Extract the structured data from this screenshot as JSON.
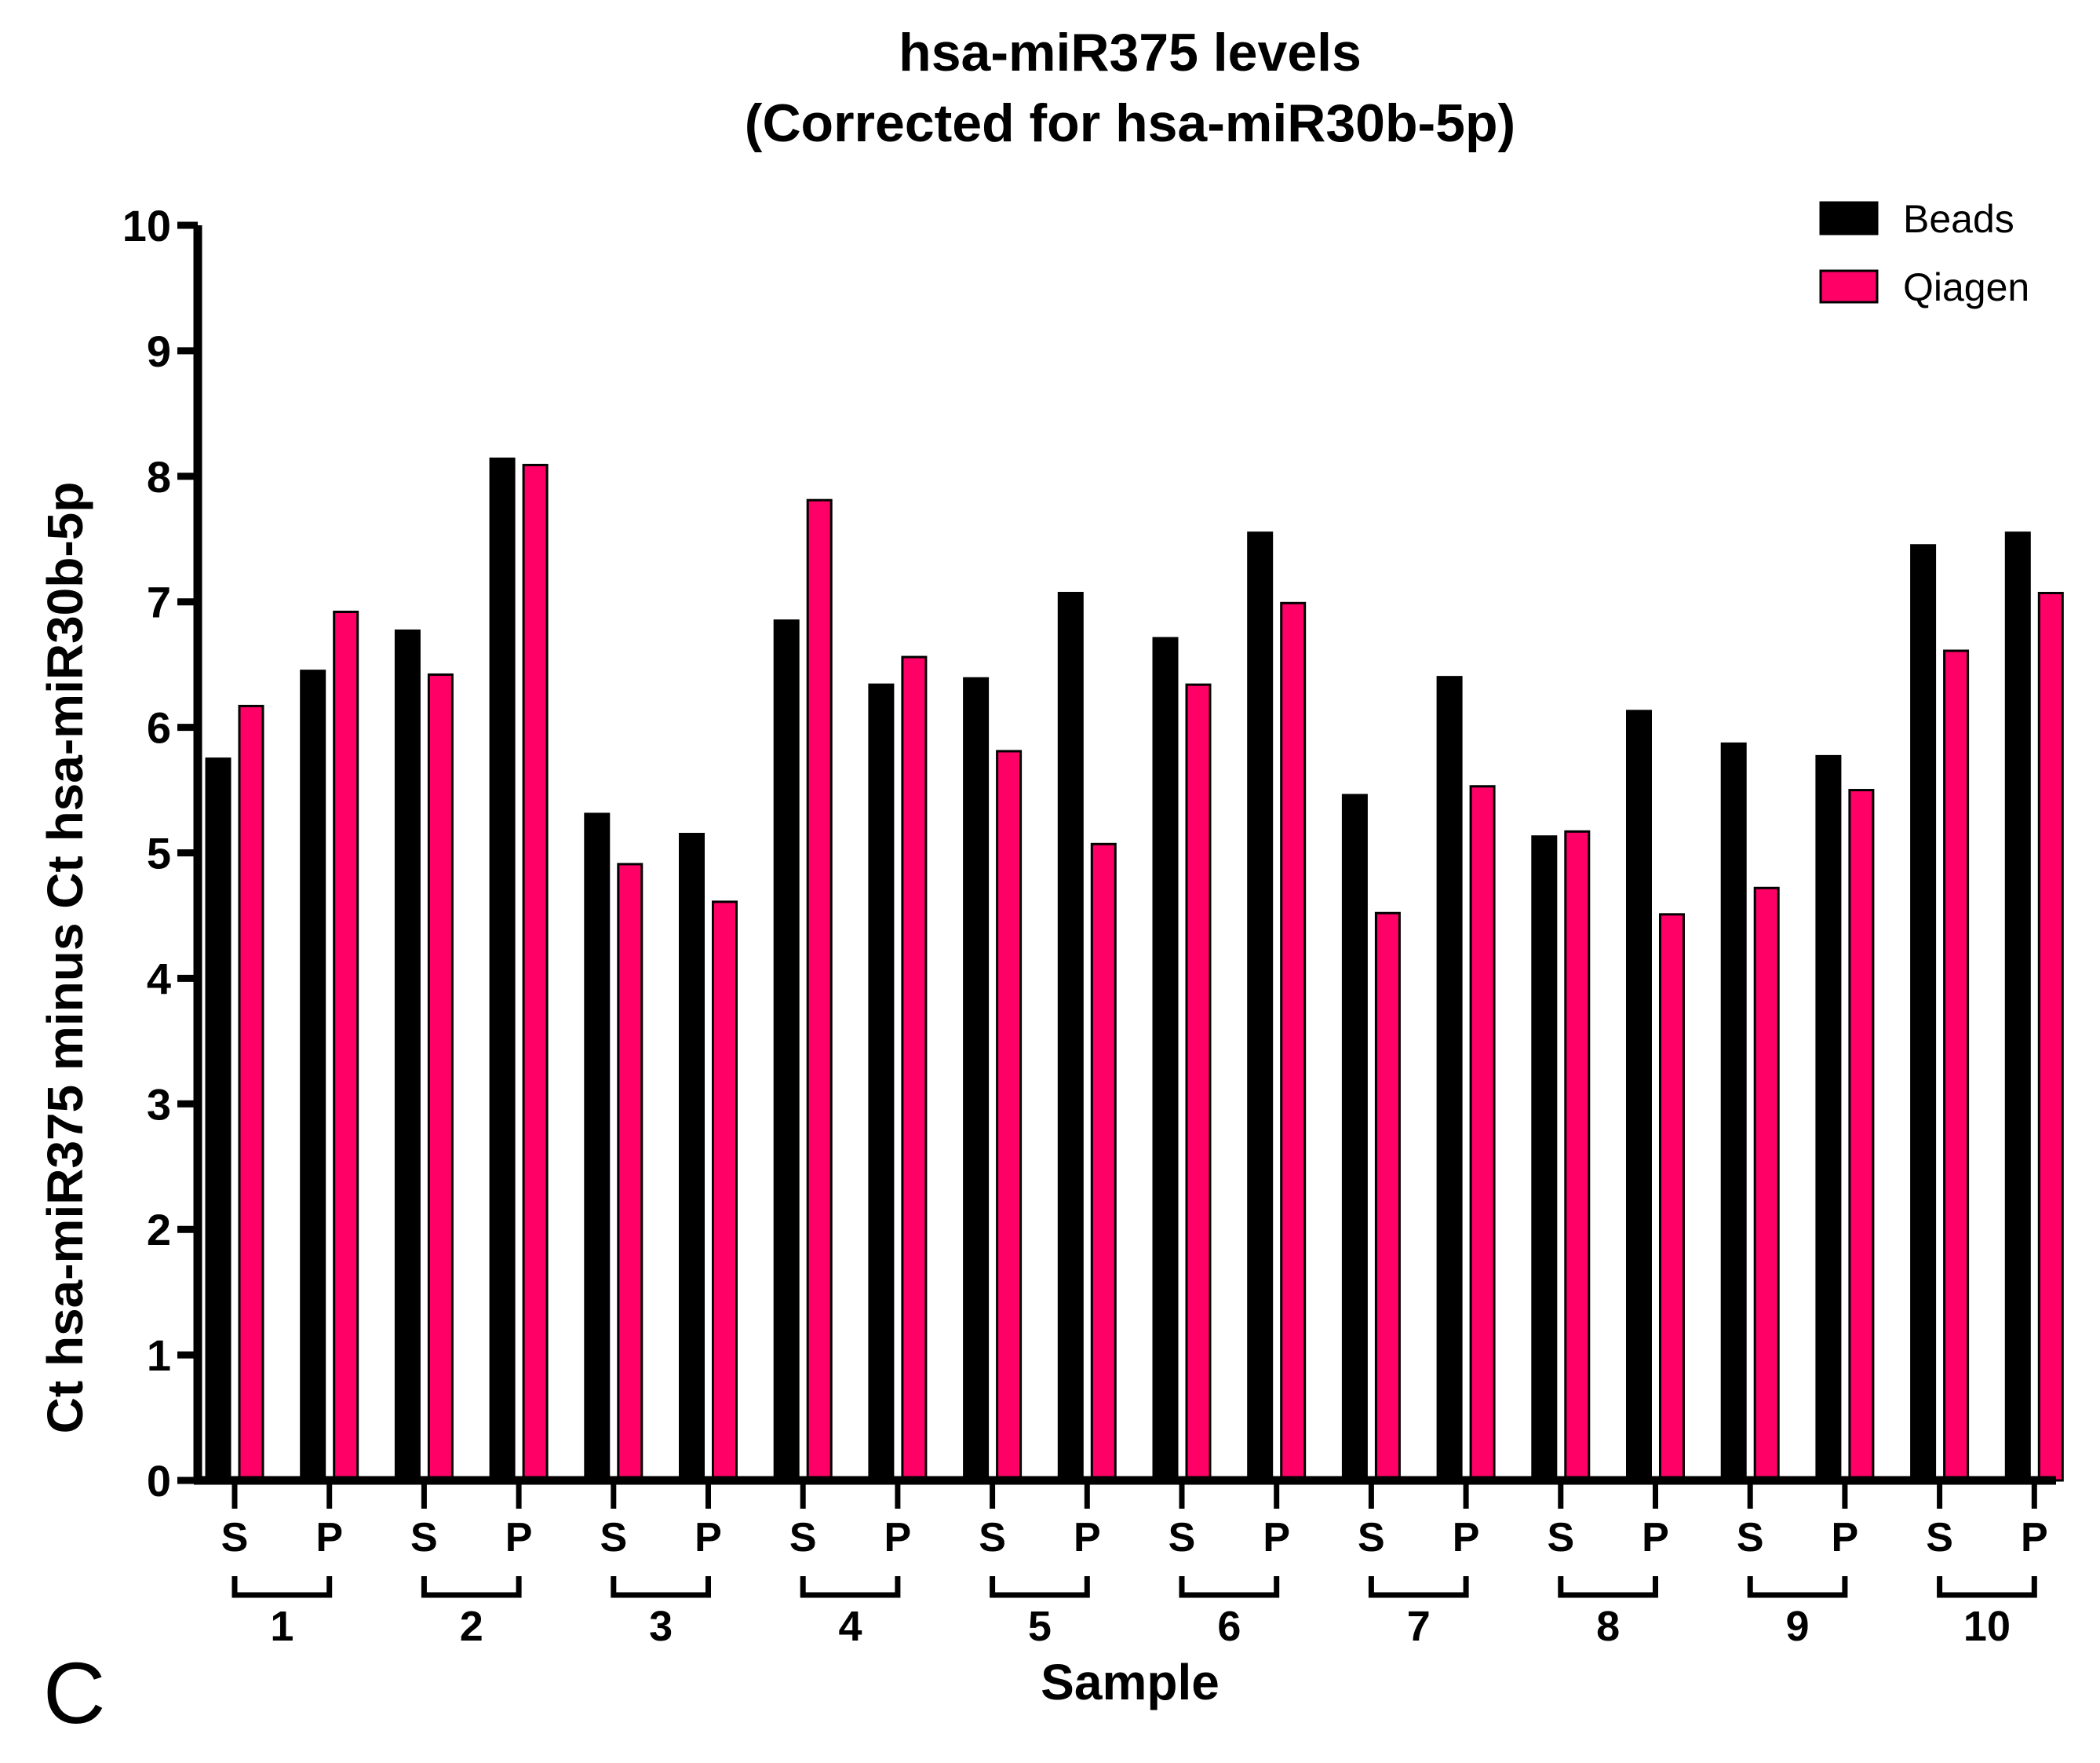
{
  "chart_data": {
    "type": "bar",
    "title_line1": "hsa-miR375 levels",
    "title_line2": "(Corrected for hsa-miR30b-5p)",
    "ylabel": "Ct hsa-miR375 minus Ct hsa-miR30b-5p",
    "xlabel": "Sample",
    "ylim": [
      0,
      10
    ],
    "yticks": [
      "0",
      "1",
      "2",
      "3",
      "4",
      "5",
      "6",
      "7",
      "8",
      "9",
      "10"
    ],
    "subcategories": [
      "S",
      "P"
    ],
    "groups": [
      "1",
      "2",
      "3",
      "4",
      "5",
      "6",
      "7",
      "8",
      "9",
      "10"
    ],
    "legend_position": "top-right",
    "panel_label": "C",
    "series": [
      {
        "name": "Beads",
        "color": "#000000",
        "values": [
          5.75,
          6.45,
          6.77,
          8.14,
          5.31,
          5.15,
          6.85,
          6.34,
          6.39,
          7.07,
          6.71,
          7.55,
          5.46,
          6.4,
          5.13,
          6.13,
          5.87,
          5.77,
          7.45,
          7.55
        ]
      },
      {
        "name": "Qiagen",
        "color": "#ff0066",
        "values": [
          6.17,
          6.92,
          6.42,
          8.09,
          4.91,
          4.61,
          7.81,
          6.56,
          5.81,
          5.07,
          6.34,
          6.99,
          4.52,
          5.53,
          5.17,
          4.51,
          4.72,
          5.5,
          6.61,
          7.07
        ]
      }
    ]
  }
}
